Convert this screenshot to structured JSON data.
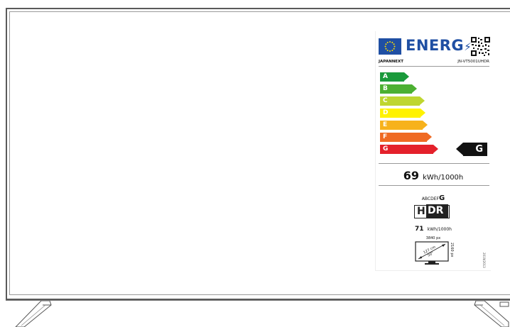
{
  "energy_label": {
    "title": "ENERG",
    "brand": "JAPANNEXT",
    "model": "JN-VT5001UHDR",
    "scale": [
      {
        "letter": "A",
        "color": "#1a9a3b"
      },
      {
        "letter": "B",
        "color": "#4cb032"
      },
      {
        "letter": "C",
        "color": "#bfd630"
      },
      {
        "letter": "D",
        "color": "#fff200"
      },
      {
        "letter": "E",
        "color": "#f7b21c"
      },
      {
        "letter": "F",
        "color": "#ef6a23"
      },
      {
        "letter": "G",
        "color": "#e4212b"
      }
    ],
    "rating": "G",
    "sdr_kwh": "69",
    "kwh_unit": "kWh/1000h",
    "hdr_scale": "ABCDEF",
    "hdr_rating": "G",
    "hdr_h": "H",
    "hdr_dr": "DR",
    "hdr_kwh": "71",
    "hdr_unit": "kWh/1000h",
    "resolution_w": "3840 px",
    "resolution_h": "2160 px",
    "diagonal_cm": "127 cm",
    "diagonal_in": "50\"",
    "regulation": "2019/2013"
  }
}
